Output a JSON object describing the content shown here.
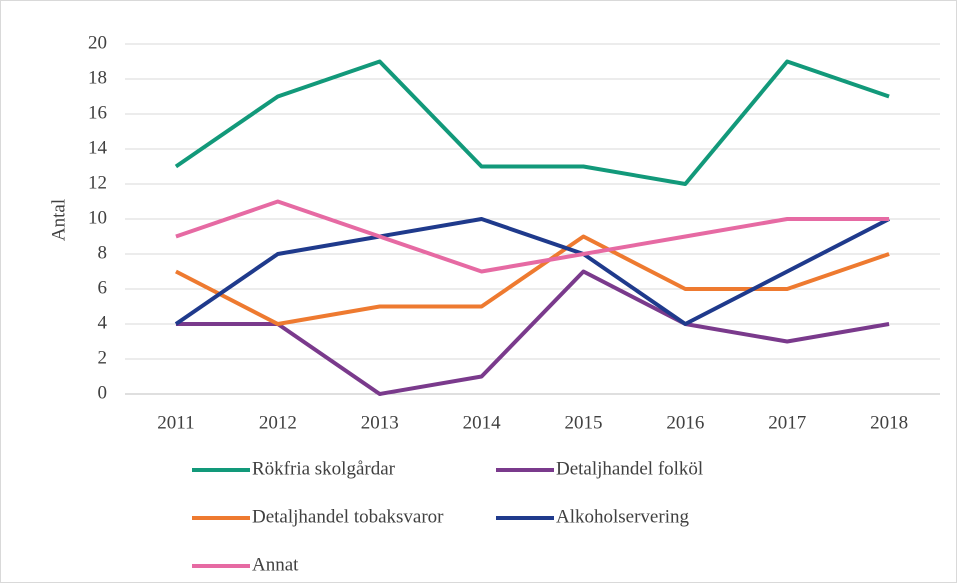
{
  "chart_data": {
    "type": "line",
    "y_label": "Antal",
    "categories": [
      "2011",
      "2012",
      "2013",
      "2014",
      "2015",
      "2016",
      "2017",
      "2018"
    ],
    "series": [
      {
        "name": "Rökfria skolgårdar",
        "color": "#12997a",
        "values": [
          13,
          17,
          19,
          13,
          13,
          12,
          19,
          17
        ]
      },
      {
        "name": "Detaljhandel folköl",
        "color": "#7a3a8c",
        "values": [
          4,
          4,
          0,
          1,
          7,
          4,
          3,
          4
        ]
      },
      {
        "name": "Detaljhandel tobaksvaror",
        "color": "#ee7a30",
        "values": [
          7,
          4,
          5,
          5,
          9,
          6,
          6,
          8
        ]
      },
      {
        "name": "Alkoholservering",
        "color": "#1f3a8c",
        "values": [
          4,
          8,
          9,
          10,
          8,
          4,
          7,
          10
        ]
      },
      {
        "name": "Annat",
        "color": "#e66aa3",
        "values": [
          9,
          11,
          9,
          7,
          8,
          9,
          10,
          10
        ]
      }
    ],
    "ylim": [
      0,
      20
    ],
    "yticks": [
      0,
      2,
      4,
      6,
      8,
      10,
      12,
      14,
      16,
      18,
      20
    ],
    "grid": true
  }
}
